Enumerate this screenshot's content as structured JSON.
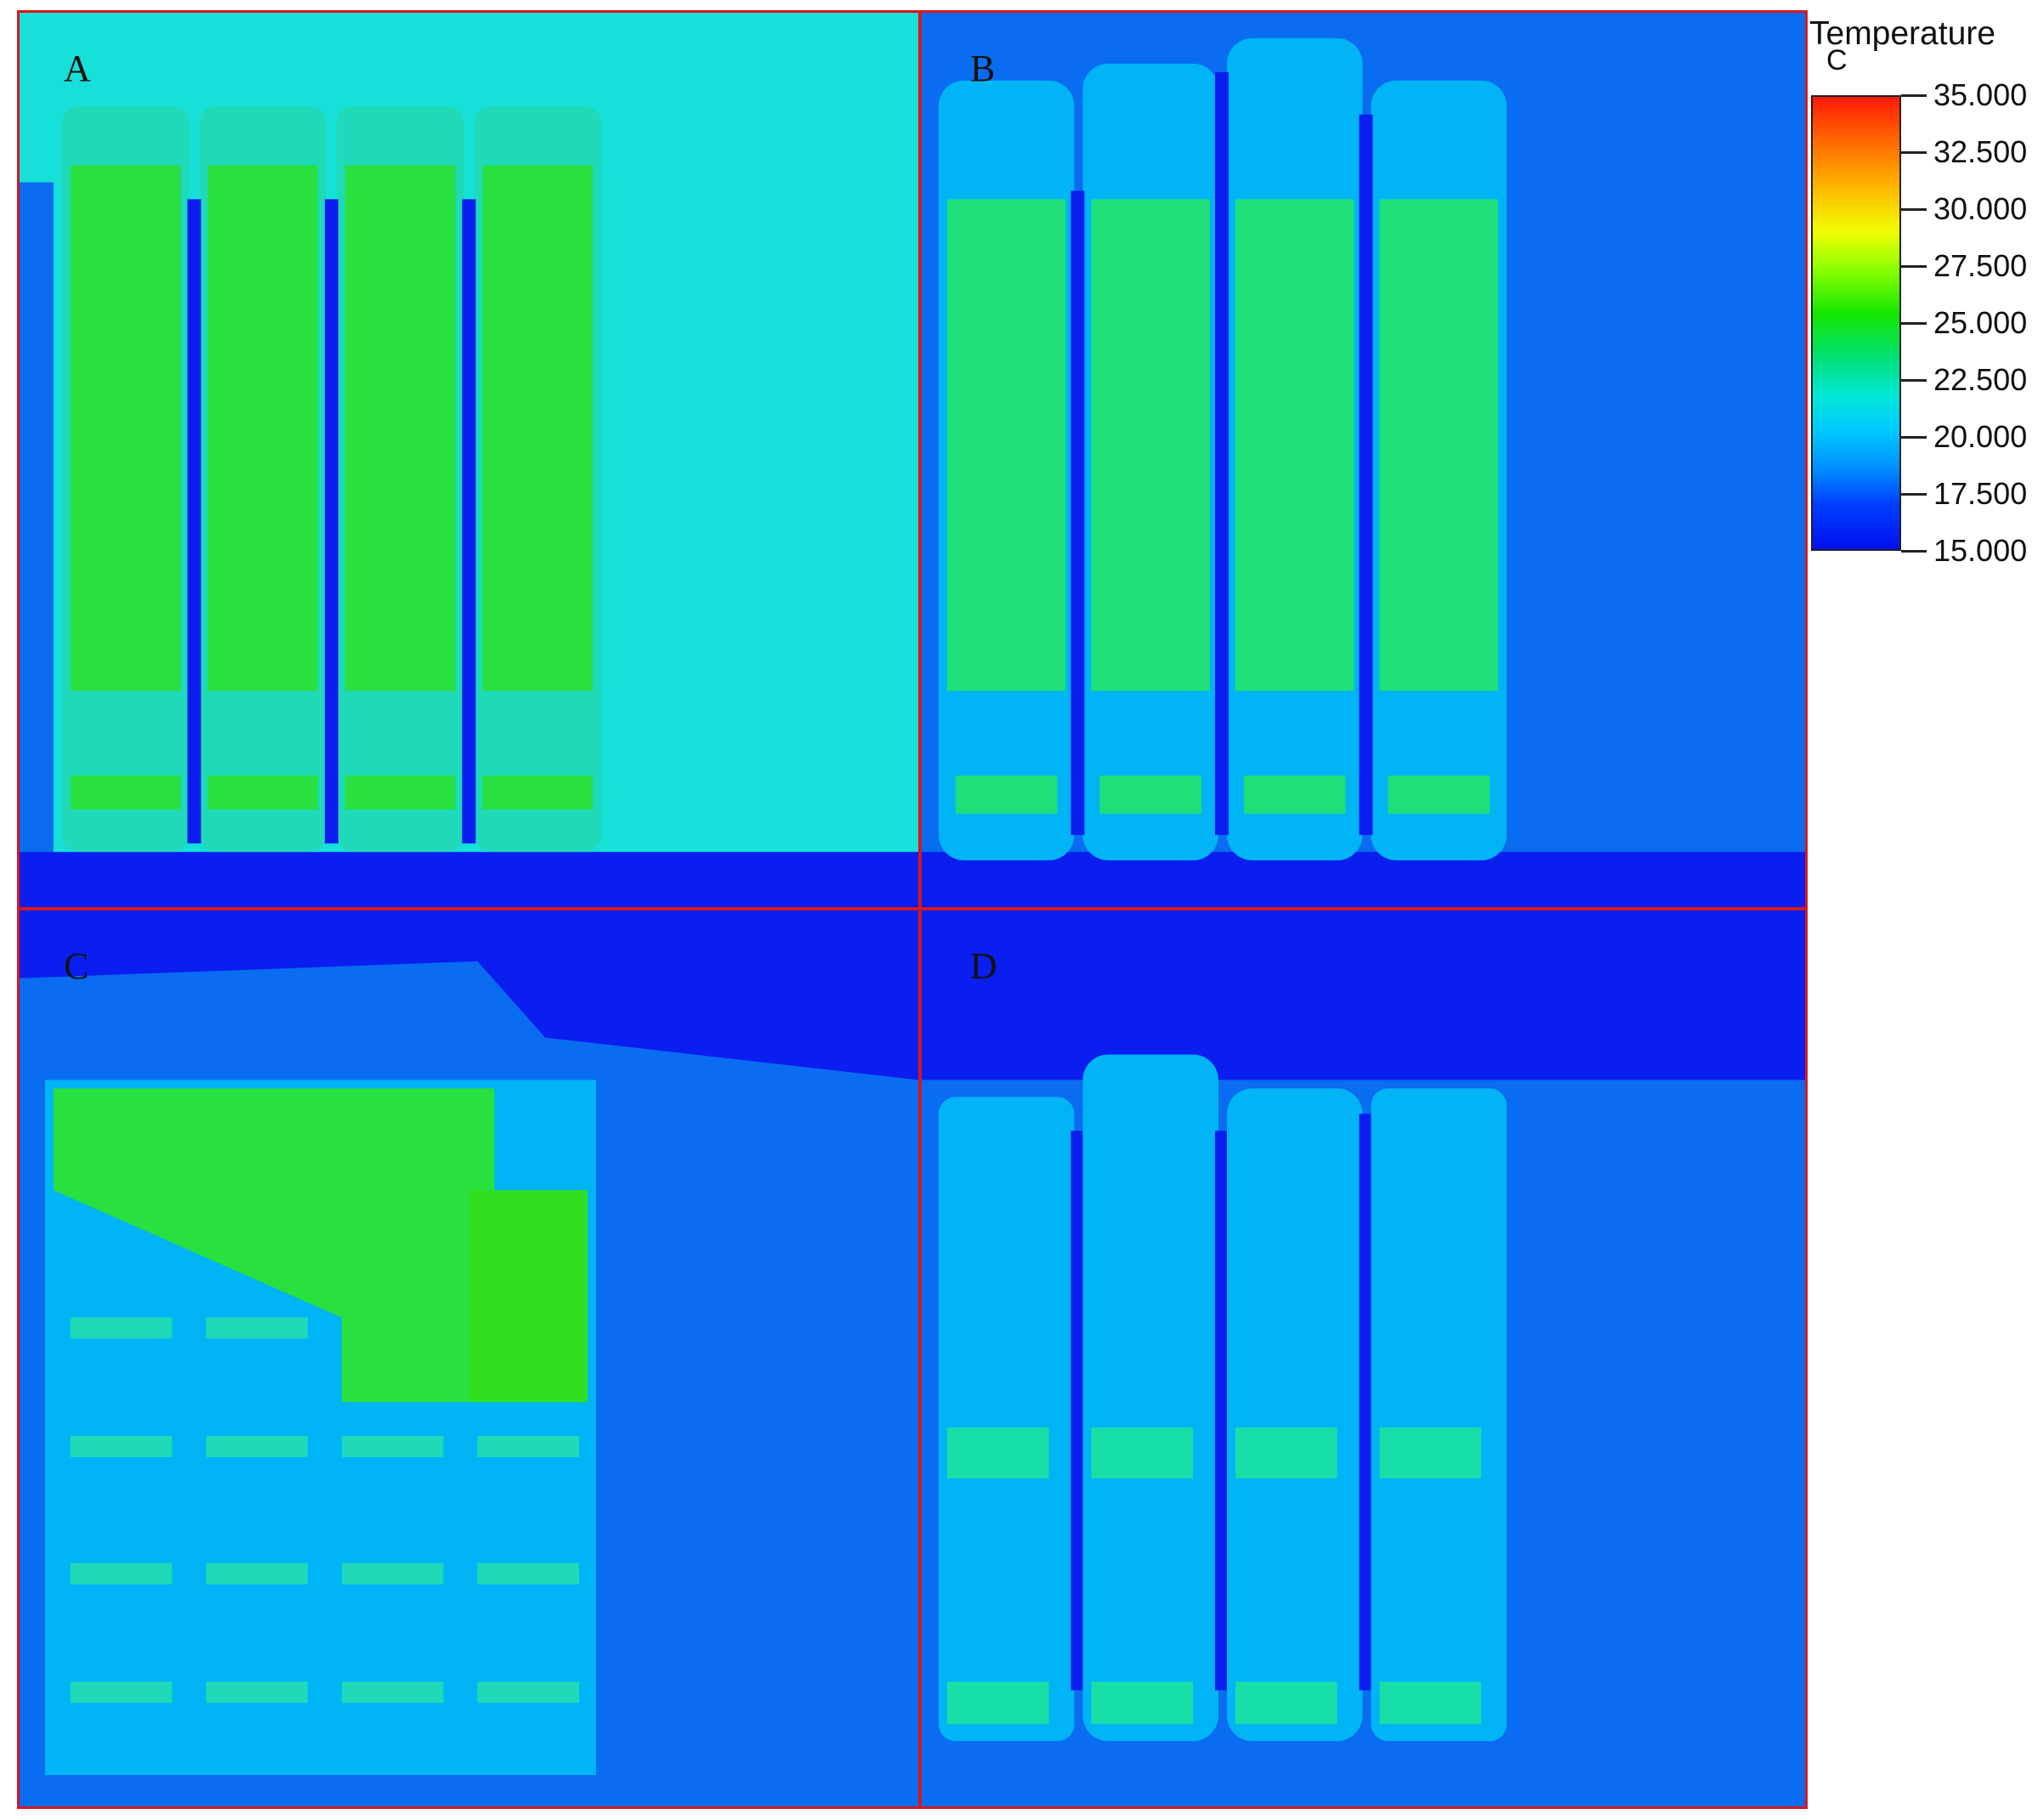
{
  "panels": [
    {
      "id": "a",
      "label": "A"
    },
    {
      "id": "b",
      "label": "B"
    },
    {
      "id": "c",
      "label": "C"
    },
    {
      "id": "d",
      "label": "D"
    }
  ],
  "legend": {
    "title": "Temperature",
    "unit": "C",
    "ticks": [
      "35.000",
      "32.500",
      "30.000",
      "27.500",
      "25.000",
      "22.500",
      "20.000",
      "17.500",
      "15.000"
    ],
    "range": [
      15,
      35
    ],
    "colors": {
      "max": "#ff1a0a",
      "mid": "#14e600",
      "low": "#00c8ff",
      "min": "#0010f0"
    }
  },
  "colors": {
    "frame": "#d8161d",
    "cold": "#0a1ef0",
    "cool": "#0a6cf0",
    "mild": "#00b4f5",
    "warm_cyan": "#16e0d8",
    "warm": "#1ee05a",
    "hot": "#28f000"
  }
}
